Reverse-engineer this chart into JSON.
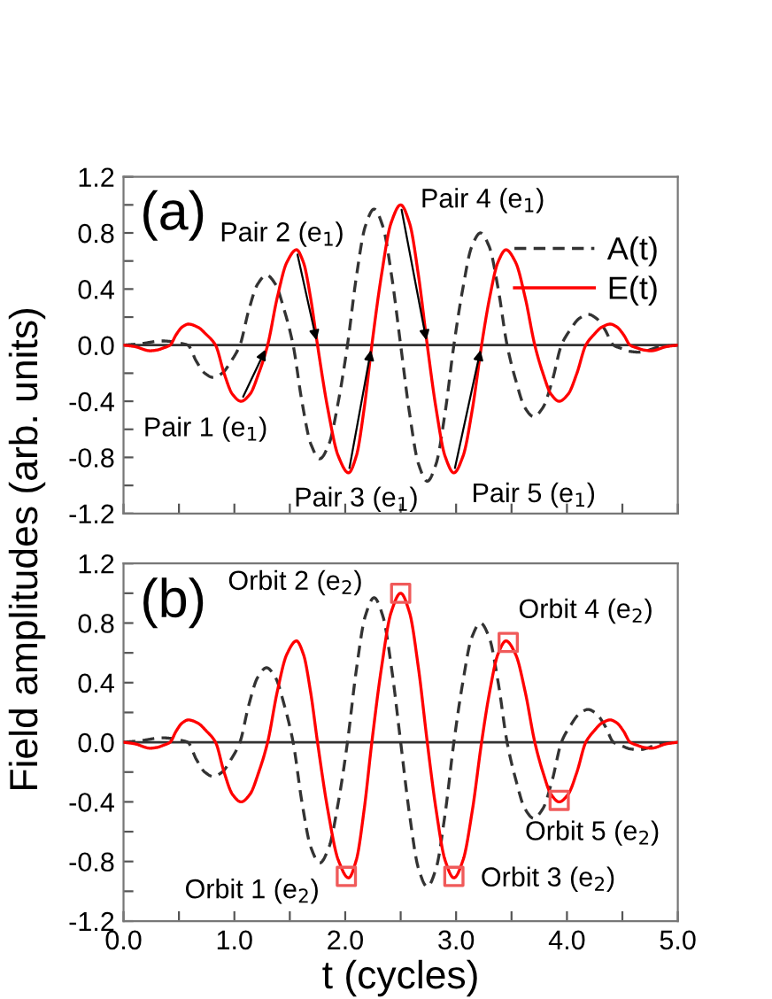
{
  "chart_data": [
    {
      "type": "line",
      "ylabel": "Field amplitudes (arb. units)",
      "legend": "top right",
      "tick_labels": "y",
      "xlim": [
        0,
        5
      ],
      "ylim": [
        -1.2,
        1.2
      ],
      "xticks": [
        {
          "value": 0,
          "label": null
        },
        {
          "value": 0.5,
          "label": null
        },
        {
          "value": 1,
          "label": null
        },
        {
          "value": 1.5,
          "label": null
        },
        {
          "value": 2,
          "label": null
        },
        {
          "value": 2.5,
          "label": null
        },
        {
          "value": 3,
          "label": null
        },
        {
          "value": 3.5,
          "label": null
        },
        {
          "value": 4,
          "label": null
        },
        {
          "value": 4.5,
          "label": null
        },
        {
          "value": 5,
          "label": null
        }
      ],
      "yticks": [
        {
          "value": -1.2,
          "label": "-1.2"
        },
        {
          "value": -1.0,
          "label": null
        },
        {
          "value": -0.8,
          "label": "-0.8"
        },
        {
          "value": -0.6,
          "label": null
        },
        {
          "value": -0.4,
          "label": "-0.4"
        },
        {
          "value": -0.2,
          "label": null
        },
        {
          "value": 0,
          "label": "0.0"
        },
        {
          "value": 0.2,
          "label": null
        },
        {
          "value": 0.4,
          "label": "0.4"
        },
        {
          "value": 0.6,
          "label": null
        },
        {
          "value": 0.8,
          "label": "0.8"
        },
        {
          "value": 1.0,
          "label": null
        },
        {
          "value": 1.2,
          "label": "1.2"
        }
      ],
      "ref_lines": [
        {
          "axis": "y",
          "value": 0,
          "color": "#333333"
        }
      ],
      "series": [
        {
          "name": "A(t)",
          "type": "line",
          "color": "#333333",
          "line_style": "dashed",
          "x": [
            0,
            0.15,
            0.35,
            0.427,
            0.503,
            0.58,
            0.657,
            0.733,
            0.81,
            0.89,
            0.97,
            1.05,
            1.13,
            1.21,
            1.29,
            1.37,
            1.45,
            1.53,
            1.61,
            1.69,
            1.77,
            1.853,
            1.937,
            2.02,
            2.1,
            2.18,
            2.26,
            2.34,
            2.42,
            2.5,
            2.58,
            2.66,
            2.74,
            2.82,
            2.9,
            2.98,
            3.06,
            3.14,
            3.22,
            3.3,
            3.38,
            3.46,
            3.54,
            3.62,
            3.7,
            3.783,
            3.867,
            3.95,
            4.03,
            4.11,
            4.19,
            4.267,
            4.343,
            4.42,
            4.497,
            4.573,
            4.65,
            4.85,
            5.0
          ],
          "values": [
            0,
            0.01,
            0.03,
            0.026,
            0.015,
            0,
            -0.115,
            -0.2,
            -0.23,
            -0.2,
            -0.115,
            0,
            0.25,
            0.435,
            0.5,
            0.435,
            0.25,
            0,
            -0.405,
            -0.705,
            -0.81,
            -0.705,
            -0.405,
            0,
            0.485,
            0.845,
            0.97,
            0.845,
            0.485,
            0,
            -0.485,
            -0.845,
            -0.97,
            -0.845,
            -0.485,
            0,
            0.4,
            0.7,
            0.8,
            0.7,
            0.4,
            0,
            -0.255,
            -0.445,
            -0.51,
            -0.445,
            -0.255,
            0,
            0.11,
            0.19,
            0.22,
            0.19,
            0.11,
            0,
            -0.025,
            -0.045,
            -0.05,
            -0.01,
            0
          ]
        },
        {
          "name": "E(t)",
          "type": "line",
          "color": "#ff0000",
          "line_style": "solid",
          "x": [
            0,
            0.1,
            0.24,
            0.3,
            0.36,
            0.42,
            0.475,
            0.53,
            0.585,
            0.667,
            0.748,
            0.83,
            0.907,
            0.983,
            1.06,
            1.14,
            1.22,
            1.3,
            1.387,
            1.473,
            1.56,
            1.623,
            1.687,
            1.75,
            1.843,
            1.937,
            2.03,
            2.1,
            2.17,
            2.24,
            2.327,
            2.413,
            2.5,
            2.58,
            2.66,
            2.74,
            2.82,
            2.9,
            2.98,
            3.063,
            3.147,
            3.23,
            3.303,
            3.377,
            3.45,
            3.537,
            3.623,
            3.71,
            3.783,
            3.857,
            3.93,
            4.01,
            4.09,
            4.17,
            4.243,
            4.317,
            4.39,
            4.45,
            4.51,
            4.57,
            4.633,
            4.697,
            4.76,
            4.9,
            5.0
          ],
          "values": [
            0,
            -0.01,
            -0.04,
            -0.035,
            -0.02,
            0,
            0.075,
            0.13,
            0.15,
            0.13,
            0.075,
            0,
            -0.2,
            -0.35,
            -0.4,
            -0.35,
            -0.2,
            0,
            0.34,
            0.59,
            0.68,
            0.59,
            0.34,
            0,
            -0.455,
            -0.79,
            -0.91,
            -0.79,
            -0.455,
            0,
            0.5,
            0.87,
            1.0,
            0.87,
            0.5,
            0,
            -0.455,
            -0.79,
            -0.91,
            -0.79,
            -0.455,
            0,
            0.34,
            0.59,
            0.68,
            0.59,
            0.34,
            0,
            -0.2,
            -0.35,
            -0.4,
            -0.35,
            -0.2,
            0,
            0.075,
            0.13,
            0.15,
            0.13,
            0.075,
            0,
            -0.02,
            -0.035,
            -0.04,
            -0.01,
            0
          ]
        }
      ],
      "annotations": [
        "(a)",
        {
          "text": "Pair 1 (e$_{1}$)",
          "x": 1.06,
          "y": -0.4
        },
        {
          "text": "Pair 2 (e$_{1}$)",
          "x": 1.56,
          "y": 0.68
        },
        {
          "text": "Pair 3 (e$_{1}$)",
          "x": 2.03,
          "y": -0.91
        },
        {
          "text": "Pair 4 (e$_{1}$)",
          "x": 2.5,
          "y": 1.0
        },
        {
          "text": "Pair 5 (e$_{1}$)",
          "x": 2.98,
          "y": -0.91
        }
      ]
    },
    {
      "type": "line",
      "xlabel": "t (cycles)",
      "xlim": [
        0,
        5
      ],
      "ylim": [
        -1.2,
        1.2
      ],
      "xticks": [
        {
          "value": 0,
          "label": "0.0"
        },
        {
          "value": 0.5,
          "label": null
        },
        {
          "value": 1,
          "label": "1.0"
        },
        {
          "value": 1.5,
          "label": null
        },
        {
          "value": 2,
          "label": "2.0"
        },
        {
          "value": 2.5,
          "label": null
        },
        {
          "value": 3,
          "label": "3.0"
        },
        {
          "value": 3.5,
          "label": null
        },
        {
          "value": 4,
          "label": "4.0"
        },
        {
          "value": 4.5,
          "label": null
        },
        {
          "value": 5,
          "label": "5.0"
        }
      ],
      "yticks": [
        {
          "value": -1.2,
          "label": "-1.2"
        },
        {
          "value": -1.0,
          "label": null
        },
        {
          "value": -0.8,
          "label": "-0.8"
        },
        {
          "value": -0.6,
          "label": null
        },
        {
          "value": -0.4,
          "label": "-0.4"
        },
        {
          "value": -0.2,
          "label": null
        },
        {
          "value": 0,
          "label": "0.0"
        },
        {
          "value": 0.2,
          "label": null
        },
        {
          "value": 0.4,
          "label": "0.4"
        },
        {
          "value": 0.6,
          "label": null
        },
        {
          "value": 0.8,
          "label": "0.8"
        },
        {
          "value": 1.0,
          "label": null
        },
        {
          "value": 1.2,
          "label": "1.2"
        }
      ],
      "ref_lines": [
        {
          "axis": "y",
          "value": 0,
          "color": "#333333"
        }
      ],
      "series": [
        {
          "type": "line",
          "color": "#333333",
          "line_style": "dashed",
          "x": [
            0,
            0.15,
            0.35,
            0.427,
            0.503,
            0.58,
            0.657,
            0.733,
            0.81,
            0.89,
            0.97,
            1.05,
            1.13,
            1.21,
            1.29,
            1.37,
            1.45,
            1.53,
            1.61,
            1.69,
            1.77,
            1.853,
            1.937,
            2.02,
            2.1,
            2.18,
            2.26,
            2.34,
            2.42,
            2.5,
            2.58,
            2.66,
            2.74,
            2.82,
            2.9,
            2.98,
            3.06,
            3.14,
            3.22,
            3.3,
            3.38,
            3.46,
            3.54,
            3.62,
            3.7,
            3.783,
            3.867,
            3.95,
            4.03,
            4.11,
            4.19,
            4.267,
            4.343,
            4.42,
            4.497,
            4.573,
            4.65,
            4.85,
            5.0
          ],
          "values": [
            0,
            0.01,
            0.03,
            0.026,
            0.015,
            0,
            -0.115,
            -0.2,
            -0.23,
            -0.2,
            -0.115,
            0,
            0.25,
            0.435,
            0.5,
            0.435,
            0.25,
            0,
            -0.405,
            -0.705,
            -0.81,
            -0.705,
            -0.405,
            0,
            0.485,
            0.845,
            0.97,
            0.845,
            0.485,
            0,
            -0.485,
            -0.845,
            -0.97,
            -0.845,
            -0.485,
            0,
            0.4,
            0.7,
            0.8,
            0.7,
            0.4,
            0,
            -0.255,
            -0.445,
            -0.51,
            -0.445,
            -0.255,
            0,
            0.11,
            0.19,
            0.22,
            0.19,
            0.11,
            0,
            -0.025,
            -0.045,
            -0.05,
            -0.01,
            0
          ]
        },
        {
          "type": "line",
          "color": "#ff0000",
          "line_style": "solid",
          "x": [
            0,
            0.1,
            0.24,
            0.3,
            0.36,
            0.42,
            0.475,
            0.53,
            0.585,
            0.667,
            0.748,
            0.83,
            0.907,
            0.983,
            1.06,
            1.14,
            1.22,
            1.3,
            1.387,
            1.473,
            1.56,
            1.623,
            1.687,
            1.75,
            1.843,
            1.937,
            2.03,
            2.1,
            2.17,
            2.24,
            2.327,
            2.413,
            2.5,
            2.58,
            2.66,
            2.74,
            2.82,
            2.9,
            2.98,
            3.063,
            3.147,
            3.23,
            3.303,
            3.377,
            3.45,
            3.537,
            3.623,
            3.71,
            3.783,
            3.857,
            3.93,
            4.01,
            4.09,
            4.17,
            4.243,
            4.317,
            4.39,
            4.45,
            4.51,
            4.57,
            4.633,
            4.697,
            4.76,
            4.9,
            5.0
          ],
          "values": [
            0,
            -0.01,
            -0.04,
            -0.035,
            -0.02,
            0,
            0.075,
            0.13,
            0.15,
            0.13,
            0.075,
            0,
            -0.2,
            -0.35,
            -0.4,
            -0.35,
            -0.2,
            0,
            0.34,
            0.59,
            0.68,
            0.59,
            0.34,
            0,
            -0.455,
            -0.79,
            -0.91,
            -0.79,
            -0.455,
            0,
            0.5,
            0.87,
            1.0,
            0.87,
            0.5,
            0,
            -0.455,
            -0.79,
            -0.91,
            -0.79,
            -0.455,
            0,
            0.34,
            0.59,
            0.68,
            0.59,
            0.34,
            0,
            -0.2,
            -0.35,
            -0.4,
            -0.35,
            -0.2,
            0,
            0.075,
            0.13,
            0.15,
            0.13,
            0.075,
            0,
            -0.02,
            -0.035,
            -0.04,
            -0.01,
            0
          ]
        },
        {
          "type": "scatter",
          "color": "#f05a5a",
          "marker": "square",
          "x": [
            2.01,
            2.5,
            2.98,
            3.47,
            3.93
          ],
          "values": [
            -0.9,
            1.0,
            -0.9,
            0.67,
            -0.39
          ]
        }
      ],
      "annotations": [
        "(b)",
        {
          "text": "Orbit 1 (e$_{2}$)",
          "x": 2.01,
          "y": -0.9
        },
        {
          "text": "Orbit 2 (e$_{2}$)",
          "x": 2.5,
          "y": 1.0
        },
        {
          "text": "Orbit 3 (e$_{2}$)",
          "x": 2.98,
          "y": -0.9
        },
        {
          "text": "Orbit 4 (e$_{2}$)",
          "x": 3.47,
          "y": 0.67
        },
        {
          "text": "Orbit 5 (e$_{2}$)",
          "x": 3.93,
          "y": -0.39
        }
      ]
    }
  ]
}
